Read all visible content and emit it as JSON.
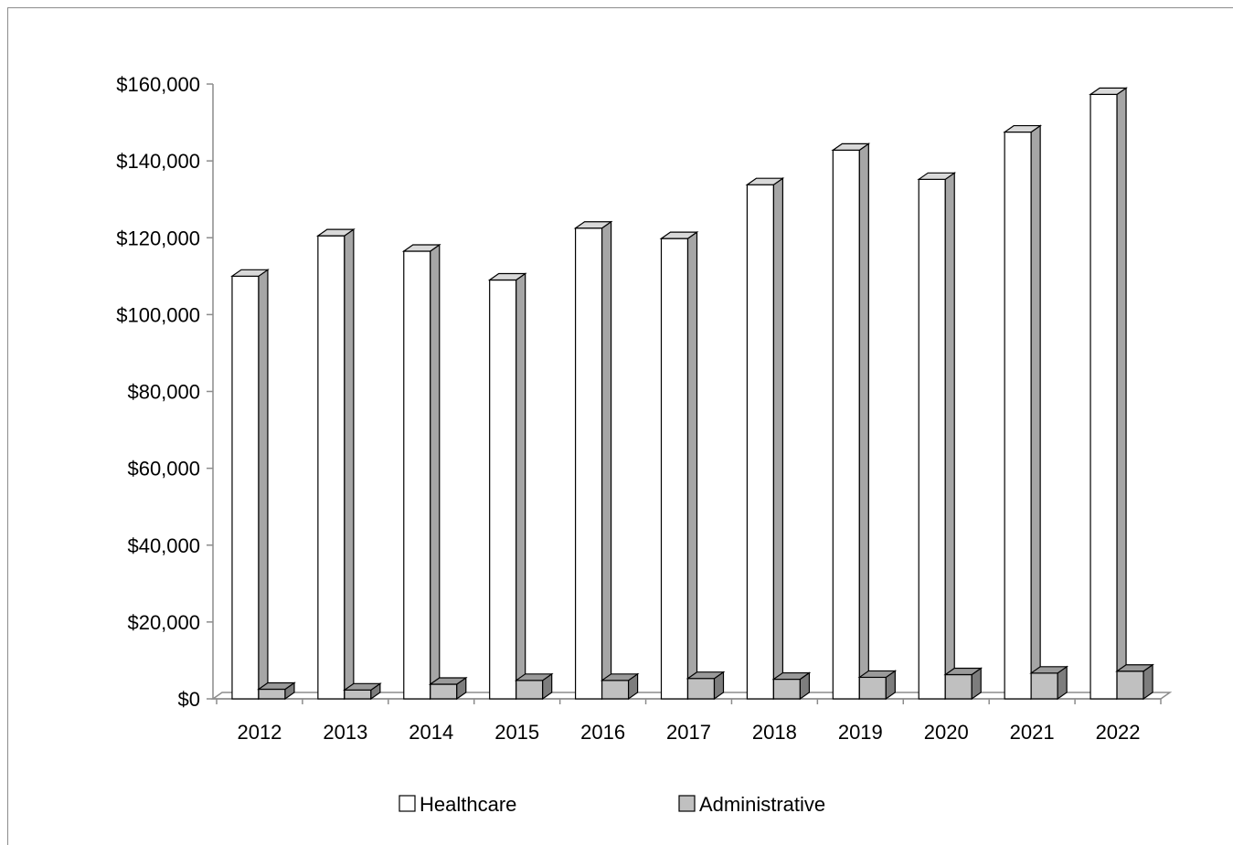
{
  "chart_data": {
    "type": "bar",
    "title": "",
    "xlabel": "",
    "ylabel": "",
    "categories": [
      "2012",
      "2013",
      "2014",
      "2015",
      "2016",
      "2017",
      "2018",
      "2019",
      "2020",
      "2021",
      "2022"
    ],
    "series": [
      {
        "name": "Healthcare",
        "color": "#ffffff",
        "values": [
          110000,
          120500,
          116500,
          109000,
          122500,
          119800,
          133800,
          142800,
          135200,
          147500,
          157300
        ]
      },
      {
        "name": "Administrative",
        "color": "#c0c0c0",
        "values": [
          2500,
          2300,
          3800,
          4800,
          4800,
          5300,
          5100,
          5600,
          6300,
          6700,
          7200
        ]
      }
    ],
    "ylim": [
      0,
      160000
    ],
    "yticks": [
      0,
      20000,
      40000,
      60000,
      80000,
      100000,
      120000,
      140000,
      160000
    ],
    "ytick_labels": [
      "$0",
      "$20,000",
      "$40,000",
      "$60,000",
      "$80,000",
      "$100,000",
      "$120,000",
      "$140,000",
      "$160,000"
    ],
    "style": "3d-clustered-column",
    "grid": false,
    "legend_position": "bottom"
  }
}
